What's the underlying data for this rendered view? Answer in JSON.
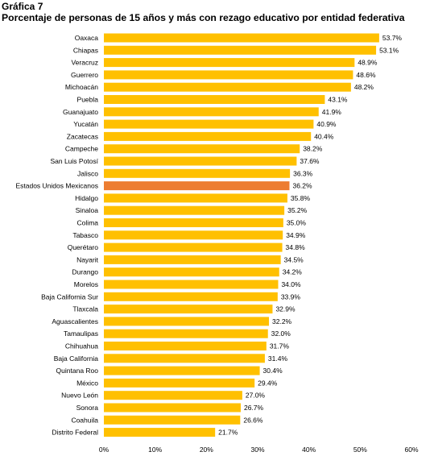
{
  "header": {
    "label": "Gráfica 7",
    "title": "Porcentaje de personas de 15 años y más con rezago educativo por entidad federativa"
  },
  "colors": {
    "bar": "#FFC000",
    "highlight": "#ED7D31"
  },
  "chart_data": {
    "type": "bar",
    "orientation": "horizontal",
    "title": "Porcentaje de personas de 15 años y más con rezago educativo por entidad federativa",
    "xlim": [
      0,
      60
    ],
    "ticks": [
      "0%",
      "10%",
      "20%",
      "30%",
      "40%",
      "50%",
      "60%"
    ],
    "tick_values": [
      0,
      10,
      20,
      30,
      40,
      50,
      60
    ],
    "grid": false,
    "highlight_category": "Estados Unidos Mexicanos",
    "categories": [
      "Oaxaca",
      "Chiapas",
      "Veracruz",
      "Guerrero",
      "Michoacán",
      "Puebla",
      "Guanajuato",
      "Yucatán",
      "Zacatecas",
      "Campeche",
      "San Luis Potosí",
      "Jalisco",
      "Estados Unidos Mexicanos",
      "Hidalgo",
      "Sinaloa",
      "Colima",
      "Tabasco",
      "Querétaro",
      "Nayarit",
      "Durango",
      "Morelos",
      "Baja California Sur",
      "Tlaxcala",
      "Aguascalientes",
      "Tamaulipas",
      "Chihuahua",
      "Baja California",
      "Quintana Roo",
      "México",
      "Nuevo León",
      "Sonora",
      "Coahuila",
      "Distrito Federal"
    ],
    "values": [
      53.7,
      53.1,
      48.9,
      48.6,
      48.2,
      43.1,
      41.9,
      40.9,
      40.4,
      38.2,
      37.6,
      36.3,
      36.2,
      35.8,
      35.2,
      35.0,
      34.9,
      34.8,
      34.5,
      34.2,
      34.0,
      33.9,
      32.9,
      32.2,
      32.0,
      31.7,
      31.4,
      30.4,
      29.4,
      27.0,
      26.7,
      26.6,
      21.7
    ],
    "value_labels": [
      "53.7%",
      "53.1%",
      "48.9%",
      "48.6%",
      "48.2%",
      "43.1%",
      "41.9%",
      "40.9%",
      "40.4%",
      "38.2%",
      "37.6%",
      "36.3%",
      "36.2%",
      "35.8%",
      "35.2%",
      "35.0%",
      "34.9%",
      "34.8%",
      "34.5%",
      "34.2%",
      "34.0%",
      "33.9%",
      "32.9%",
      "32.2%",
      "32.0%",
      "31.7%",
      "31.4%",
      "30.4%",
      "29.4%",
      "27.0%",
      "26.7%",
      "26.6%",
      "21.7%"
    ]
  }
}
